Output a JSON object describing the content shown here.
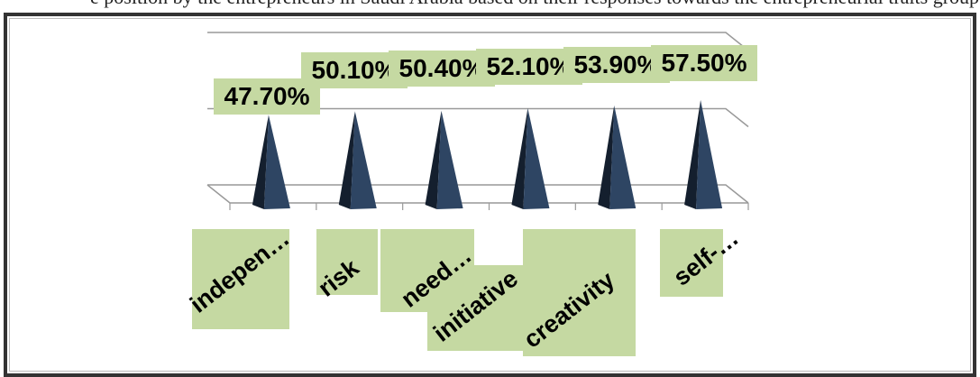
{
  "caption_fragment": "e position by the entrepreneurs in Saudi Arabia based on their responses towards the entrepreneurial traits grouped",
  "chart_data": {
    "type": "bar",
    "shape": "pyramid-3d",
    "categories": [
      "indepen…",
      "risk",
      "need…",
      "initiative",
      "creativity",
      "self-…"
    ],
    "values": [
      47.7,
      50.1,
      50.4,
      52.1,
      53.9,
      57.5
    ],
    "data_labels": [
      "47.70%",
      "50.10%",
      "50.40%",
      "52.10%",
      "53.90%",
      "57.50%"
    ],
    "title": "",
    "xlabel": "",
    "ylabel": "",
    "ylim": [
      0,
      100
    ],
    "grid": true,
    "legend": "none",
    "colors": {
      "bar": "#2e4563",
      "bar_dark": "#141f2e",
      "label_bg": "#c5d9a2",
      "gridline": "#999999"
    }
  }
}
